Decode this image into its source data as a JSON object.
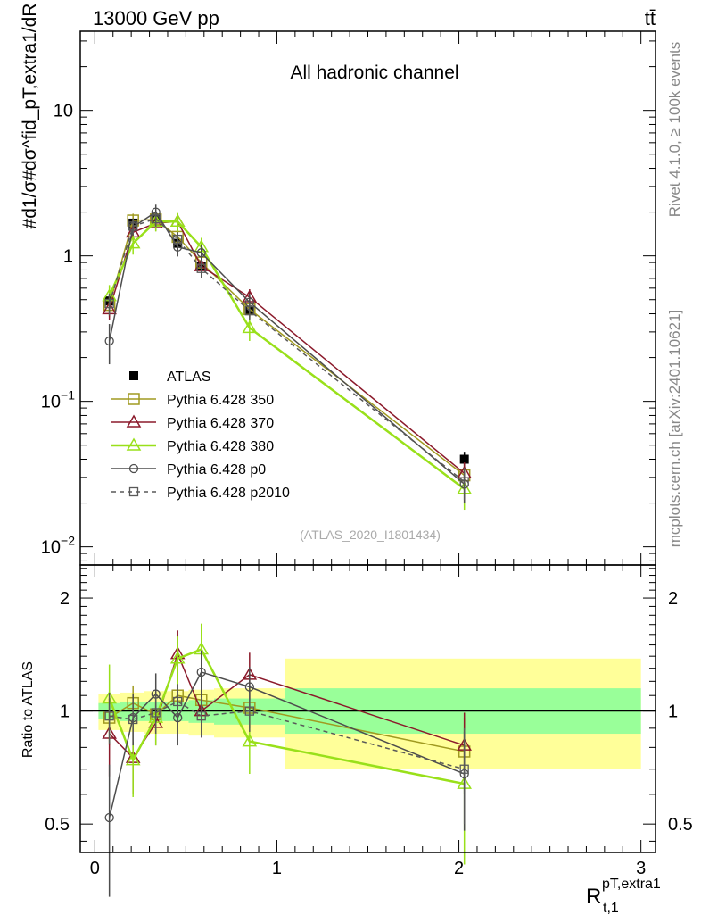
{
  "header": {
    "left": "13000 GeV pp",
    "right": "tt̄"
  },
  "side_text": {
    "rivet": "Rivet 4.1.0, ≥ 100k events",
    "mcplots": "mcplots.cern.ch [arXiv:2401.10621]"
  },
  "chart_data": [
    {
      "type": "line",
      "title": "All hadronic channel",
      "watermark": "(ATLAS_2020_I1801434)",
      "yscale": "log",
      "ylabel": "1/σ dσ^fid / dR^{pT,extra1}_{t,1}",
      "ylabel_display": "#d1/σ#dσ^fid_pT,extra1/dR",
      "xlim": [
        -0.08,
        3.08
      ],
      "ylim": [
        0.0075,
        35
      ],
      "x": [
        0.08,
        0.21,
        0.335,
        0.455,
        0.585,
        0.85,
        2.03
      ],
      "yticks": [
        {
          "value": 0.01,
          "base": "10",
          "exp": "−2"
        },
        {
          "value": 0.1,
          "base": "10",
          "exp": "−1"
        },
        {
          "value": 1,
          "base": "1",
          "exp": ""
        },
        {
          "value": 10,
          "base": "10",
          "exp": ""
        }
      ],
      "legend_position": "lower-left",
      "series": [
        {
          "name": "ATLAS",
          "color": "#000000",
          "marker": "filled-square",
          "dash": "none",
          "values": [
            0.49,
            1.68,
            1.82,
            1.22,
            0.85,
            0.42,
            0.04
          ],
          "errors": [
            0.06,
            0.15,
            0.15,
            0.1,
            0.07,
            0.04,
            0.005
          ]
        },
        {
          "name": "Pythia 6.428 350",
          "color": "#a09a20",
          "marker": "open-square",
          "dash": "none",
          "values": [
            0.46,
            1.75,
            1.78,
            1.35,
            0.9,
            0.43,
            0.031
          ],
          "errors": [
            0.08,
            0.2,
            0.2,
            0.15,
            0.12,
            0.06,
            0.006
          ]
        },
        {
          "name": "Pythia 6.428 370",
          "color": "#8b1a2b",
          "marker": "open-triangle",
          "dash": "none",
          "values": [
            0.43,
            1.45,
            1.68,
            1.72,
            0.85,
            0.52,
            0.032
          ],
          "errors": [
            0.07,
            0.2,
            0.2,
            0.22,
            0.12,
            0.07,
            0.006
          ]
        },
        {
          "name": "Pythia 6.428 380",
          "color": "#99e01a",
          "marker": "open-triangle",
          "dash": "none",
          "values": [
            0.53,
            1.22,
            1.72,
            1.72,
            1.15,
            0.32,
            0.025
          ],
          "errors": [
            0.1,
            0.2,
            0.25,
            0.25,
            0.18,
            0.06,
            0.007
          ]
        },
        {
          "name": "Pythia 6.428 p0",
          "color": "#4d4d4d",
          "marker": "open-circle",
          "dash": "none",
          "values": [
            0.26,
            1.58,
            2.0,
            1.15,
            1.05,
            0.48,
            0.027
          ],
          "errors": [
            0.08,
            0.2,
            0.25,
            0.16,
            0.15,
            0.07,
            0.007
          ]
        },
        {
          "name": "Pythia 6.428 p2010",
          "color": "#595959",
          "marker": "open-square-small",
          "dash": "dashed",
          "values": [
            0.47,
            1.6,
            1.8,
            1.3,
            0.82,
            0.42,
            0.028
          ],
          "errors": [
            0.08,
            0.2,
            0.22,
            0.15,
            0.12,
            0.06,
            0.007
          ]
        }
      ]
    },
    {
      "type": "line",
      "ylabel": "Ratio to ATLAS",
      "xlabel": "R_{t,1}^{pT,extra1}",
      "xlabel_main": "R",
      "xlabel_sup": "pT,extra1",
      "xlabel_sub": "t,1",
      "yscale": "log",
      "xlim": [
        -0.08,
        3.08
      ],
      "ylim": [
        0.42,
        2.45
      ],
      "xticks": [
        0,
        1,
        2,
        3
      ],
      "yticks": [
        0.5,
        1,
        2
      ],
      "ytick_labels": [
        "0.5",
        "1",
        "2"
      ],
      "bin_edges": [
        0.02,
        0.14,
        0.27,
        0.395,
        0.515,
        0.655,
        1.045,
        3.0
      ],
      "band_stat": [
        [
          0.95,
          1.05
        ],
        [
          0.94,
          1.06
        ],
        [
          0.94,
          1.06
        ],
        [
          0.94,
          1.06
        ],
        [
          0.93,
          1.07
        ],
        [
          0.92,
          1.08
        ],
        [
          0.87,
          1.15
        ]
      ],
      "band_total": [
        [
          0.89,
          1.11
        ],
        [
          0.88,
          1.12
        ],
        [
          0.87,
          1.13
        ],
        [
          0.87,
          1.13
        ],
        [
          0.86,
          1.14
        ],
        [
          0.85,
          1.15
        ],
        [
          0.7,
          1.38
        ]
      ],
      "x": [
        0.08,
        0.21,
        0.335,
        0.455,
        0.585,
        0.85,
        2.03
      ],
      "series": [
        {
          "name": "Pythia 6.428 350",
          "color": "#a09a20",
          "marker": "open-square",
          "dash": "none",
          "values": [
            0.96,
            1.05,
            0.98,
            1.1,
            1.07,
            1.02,
            0.78
          ],
          "errors": [
            0.15,
            0.12,
            0.1,
            0.12,
            0.12,
            0.12,
            0.18
          ]
        },
        {
          "name": "Pythia 6.428 370",
          "color": "#8b1a2b",
          "marker": "open-triangle",
          "dash": "none",
          "values": [
            0.87,
            0.75,
            0.93,
            1.42,
            1.0,
            1.25,
            0.81
          ],
          "errors": [
            0.2,
            0.15,
            0.12,
            0.22,
            0.15,
            0.18,
            0.18
          ]
        },
        {
          "name": "Pythia 6.428 380",
          "color": "#99e01a",
          "marker": "open-triangle",
          "dash": "none",
          "values": [
            1.08,
            0.74,
            0.96,
            1.38,
            1.46,
            0.83,
            0.64
          ],
          "errors": [
            0.25,
            0.15,
            0.15,
            0.2,
            0.25,
            0.15,
            0.25
          ]
        },
        {
          "name": "Pythia 6.428 p0",
          "color": "#4d4d4d",
          "marker": "open-circle",
          "dash": "none",
          "values": [
            0.52,
            0.96,
            1.11,
            0.96,
            1.27,
            1.16,
            0.68
          ],
          "errors": [
            0.2,
            0.15,
            0.15,
            0.15,
            0.18,
            0.15,
            0.2
          ]
        },
        {
          "name": "Pythia 6.428 p2010",
          "color": "#595959",
          "marker": "open-square-small",
          "dash": "dashed",
          "values": [
            0.97,
            0.95,
            0.99,
            1.06,
            0.97,
            1.0,
            0.7
          ],
          "errors": [
            0.15,
            0.12,
            0.12,
            0.12,
            0.12,
            0.12,
            0.2
          ]
        }
      ]
    }
  ]
}
